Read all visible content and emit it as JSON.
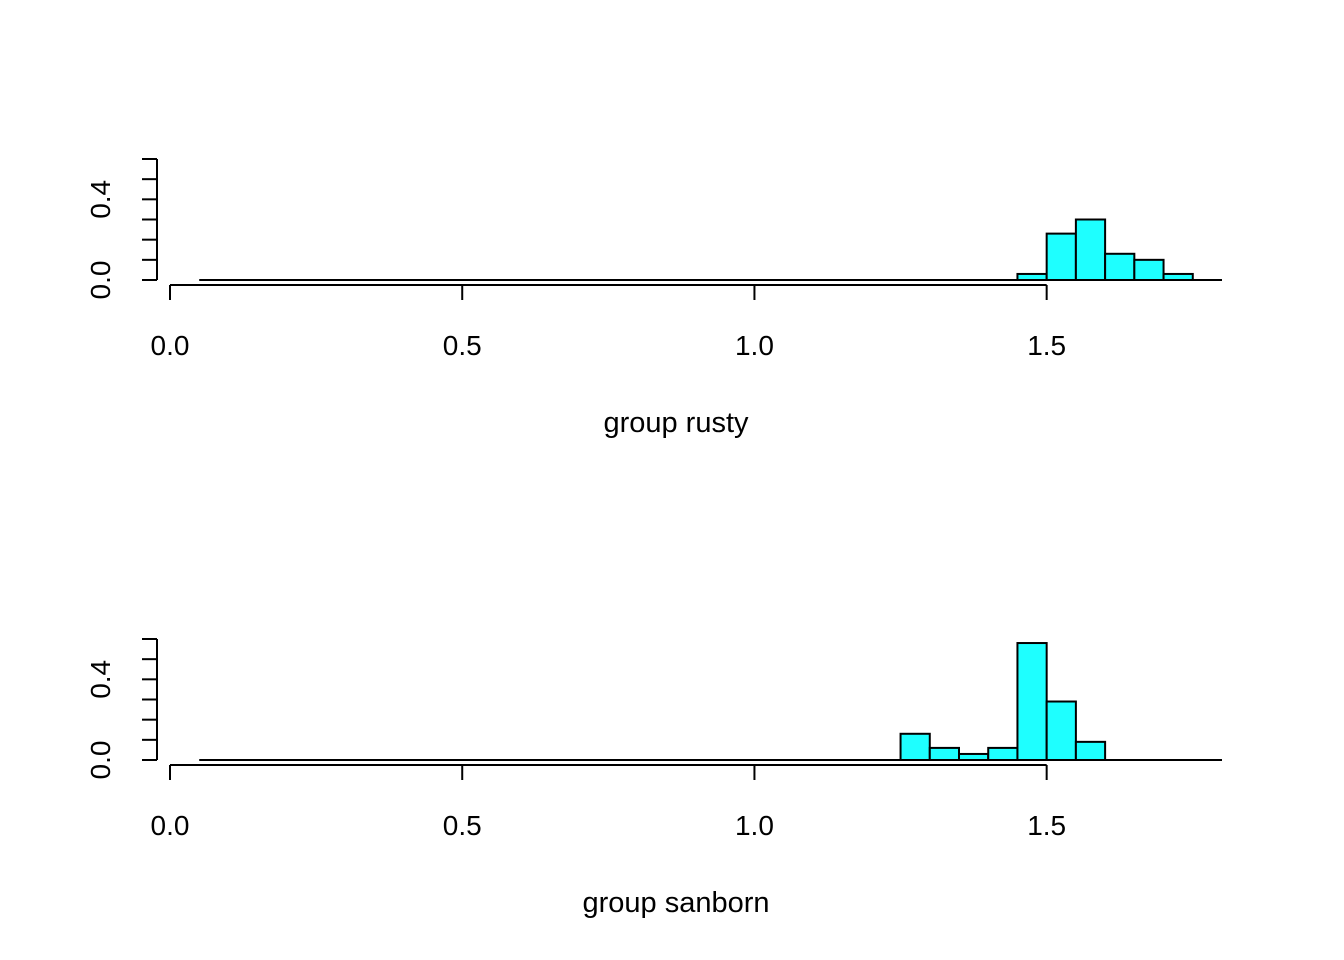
{
  "chart_data": [
    {
      "type": "bar",
      "subtype": "histogram",
      "xlabel": "group rusty",
      "ylabel": "",
      "xlim": [
        0.0,
        1.8
      ],
      "ylim": [
        0.0,
        0.6
      ],
      "x_ticks": [
        0.0,
        0.5,
        1.0,
        1.5
      ],
      "x_tick_labels": [
        "0.0",
        "0.5",
        "1.0",
        "1.5"
      ],
      "y_ticks": [
        0.0,
        0.1,
        0.2,
        0.3,
        0.4,
        0.5,
        0.6
      ],
      "y_tick_labels": [
        "0.0",
        "",
        "",
        "",
        "0.4",
        "",
        ""
      ],
      "bin_width": 0.05,
      "bin_starts": [
        0.05,
        0.1,
        0.15,
        0.2,
        0.25,
        0.3,
        0.35,
        0.4,
        0.45,
        0.5,
        0.55,
        0.6,
        0.65,
        0.7,
        0.75,
        0.8,
        0.85,
        0.9,
        0.95,
        1.0,
        1.05,
        1.1,
        1.15,
        1.2,
        1.25,
        1.3,
        1.35,
        1.4,
        1.45,
        1.5,
        1.55,
        1.6,
        1.65,
        1.7
      ],
      "values": [
        0,
        0,
        0,
        0,
        0,
        0,
        0,
        0,
        0,
        0,
        0,
        0,
        0,
        0,
        0,
        0,
        0,
        0,
        0,
        0,
        0,
        0,
        0,
        0,
        0,
        0,
        0,
        0,
        0.03,
        0.23,
        0.3,
        0.13,
        0.1,
        0.03
      ],
      "fill_color": "#1effff",
      "grid": false
    },
    {
      "type": "bar",
      "subtype": "histogram",
      "xlabel": "group sanborn",
      "ylabel": "",
      "xlim": [
        0.0,
        1.8
      ],
      "ylim": [
        0.0,
        0.6
      ],
      "x_ticks": [
        0.0,
        0.5,
        1.0,
        1.5
      ],
      "x_tick_labels": [
        "0.0",
        "0.5",
        "1.0",
        "1.5"
      ],
      "y_ticks": [
        0.0,
        0.1,
        0.2,
        0.3,
        0.4,
        0.5,
        0.6
      ],
      "y_tick_labels": [
        "0.0",
        "",
        "",
        "",
        "0.4",
        "",
        ""
      ],
      "bin_width": 0.05,
      "bin_starts": [
        0.05,
        0.1,
        0.15,
        0.2,
        0.25,
        0.3,
        0.35,
        0.4,
        0.45,
        0.5,
        0.55,
        0.6,
        0.65,
        0.7,
        0.75,
        0.8,
        0.85,
        0.9,
        0.95,
        1.0,
        1.05,
        1.1,
        1.15,
        1.2,
        1.25,
        1.3,
        1.35,
        1.4,
        1.45,
        1.5,
        1.55,
        1.6,
        1.65,
        1.7
      ],
      "values": [
        0,
        0,
        0,
        0,
        0,
        0,
        0,
        0,
        0,
        0,
        0,
        0,
        0,
        0,
        0,
        0,
        0,
        0,
        0,
        0,
        0,
        0,
        0,
        0,
        0.13,
        0.06,
        0.03,
        0.06,
        0.58,
        0.29,
        0.09,
        0,
        0,
        0
      ],
      "fill_color": "#1effff",
      "grid": false
    }
  ]
}
